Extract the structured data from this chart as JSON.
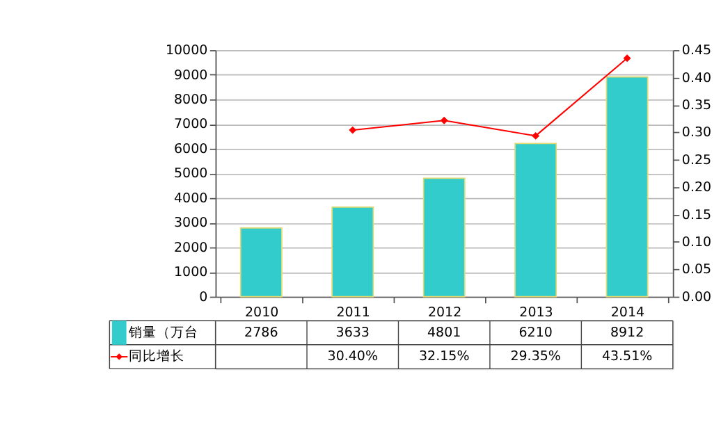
{
  "chart_data": {
    "type": "bar",
    "categories": [
      "2010",
      "2011",
      "2012",
      "2013",
      "2014"
    ],
    "series": [
      {
        "name": "销量（万台",
        "color": "#33cccc",
        "values": [
          2786,
          3633,
          4801,
          6210,
          8912
        ],
        "value_labels": [
          "2786",
          "3633",
          "4801",
          "6210",
          "8912"
        ]
      },
      {
        "name": "同比增长",
        "type": "line",
        "axis": "y2",
        "color": "#ff0000",
        "marker": "diamond",
        "line_style": "solid",
        "values": [
          null,
          0.304,
          0.3215,
          0.2935,
          0.4351
        ],
        "value_labels": [
          null,
          "30.40%",
          "32.15%",
          "29.35%",
          "43.51%"
        ]
      }
    ],
    "ylim": [
      0,
      10000
    ],
    "yticks": [
      0,
      1000,
      2000,
      3000,
      4000,
      5000,
      6000,
      7000,
      8000,
      9000,
      10000
    ],
    "y2lim": [
      0,
      0.45
    ],
    "y2ticks": [
      {
        "value": 0,
        "label": "0.00"
      },
      {
        "value": 0.05,
        "label": "0.05"
      },
      {
        "value": 0.1,
        "label": "0.10"
      },
      {
        "value": 0.15,
        "label": "0.15"
      },
      {
        "value": 0.2,
        "label": "0.20"
      },
      {
        "value": 0.25,
        "label": "0.25"
      },
      {
        "value": 0.3,
        "label": "0.30"
      },
      {
        "value": 0.35,
        "label": "0.35"
      },
      {
        "value": 0.4,
        "label": "0.40"
      },
      {
        "value": 0.45,
        "label": "0.45"
      }
    ],
    "grid": "y",
    "legend": "bottom"
  }
}
